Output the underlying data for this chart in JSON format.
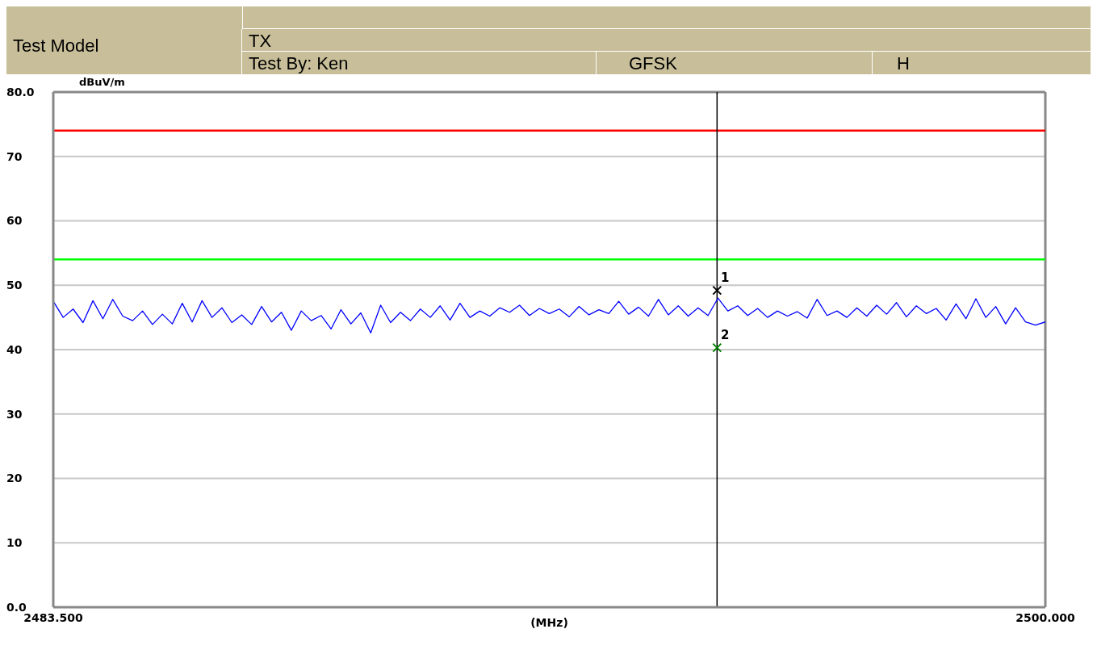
{
  "chart_data": {
    "type": "line",
    "annotations": [
      "Test Model",
      "TX",
      "Test By: Ken",
      "GFSK",
      "H"
    ],
    "xlabel": "(MHz)",
    "ylabel": "dBuV/m",
    "xlim": [
      2483.5,
      2500
    ],
    "xticks": [
      {
        "value": 2483.5,
        "label": "2483.500"
      },
      {
        "value": 2500,
        "label": "2500.000"
      }
    ],
    "ylim": [
      0,
      80
    ],
    "yticks": [
      {
        "value": 0,
        "label": "0.0"
      },
      10,
      20,
      30,
      40,
      50,
      60,
      70,
      {
        "value": 80,
        "label": "80.0"
      }
    ],
    "grid": "y",
    "legend": false,
    "line_style": "solid",
    "ref_lines": [
      {
        "axis": "y",
        "value": 74,
        "color": "#ff0000"
      },
      {
        "axis": "y",
        "value": 54,
        "color": "#00ff00"
      },
      {
        "axis": "x",
        "value": 2494.54,
        "color": "#000000"
      }
    ],
    "series": [
      {
        "color": "#0000ff",
        "marker": "none",
        "x": [
          2483.5,
          2483.665,
          2483.83,
          2483.995,
          2484.16,
          2484.325,
          2484.49,
          2484.655,
          2484.82,
          2484.985,
          2485.15,
          2485.315,
          2485.48,
          2485.645,
          2485.81,
          2485.975,
          2486.14,
          2486.305,
          2486.47,
          2486.635,
          2486.8,
          2486.965,
          2487.13,
          2487.295,
          2487.46,
          2487.625,
          2487.79,
          2487.955,
          2488.12,
          2488.285,
          2488.45,
          2488.615,
          2488.78,
          2488.945,
          2489.11,
          2489.275,
          2489.44,
          2489.605,
          2489.77,
          2489.935,
          2490.1,
          2490.265,
          2490.43,
          2490.595,
          2490.76,
          2490.925,
          2491.09,
          2491.255,
          2491.42,
          2491.585,
          2491.75,
          2491.915,
          2492.08,
          2492.245,
          2492.41,
          2492.575,
          2492.74,
          2492.905,
          2493.07,
          2493.235,
          2493.4,
          2493.565,
          2493.73,
          2493.895,
          2494.06,
          2494.225,
          2494.39,
          2494.555,
          2494.72,
          2494.885,
          2495.05,
          2495.215,
          2495.38,
          2495.545,
          2495.71,
          2495.875,
          2496.04,
          2496.205,
          2496.37,
          2496.535,
          2496.7,
          2496.865,
          2497.03,
          2497.195,
          2497.36,
          2497.525,
          2497.69,
          2497.855,
          2498.02,
          2498.185,
          2498.35,
          2498.515,
          2498.68,
          2498.845,
          2499.01,
          2499.175,
          2499.34,
          2499.505,
          2499.67,
          2499.835,
          2500
        ],
        "values": [
          47.5,
          45.0,
          46.3,
          44.2,
          47.6,
          44.8,
          47.8,
          45.2,
          44.5,
          46.0,
          43.9,
          45.5,
          44.0,
          47.2,
          44.3,
          47.6,
          45.0,
          46.5,
          44.2,
          45.4,
          43.9,
          46.7,
          44.3,
          45.8,
          43.0,
          46.0,
          44.5,
          45.3,
          43.2,
          46.2,
          44.0,
          45.7,
          42.6,
          46.9,
          44.2,
          45.8,
          44.5,
          46.3,
          45.0,
          46.8,
          44.6,
          47.2,
          45.0,
          46.0,
          45.2,
          46.5,
          45.8,
          46.9,
          45.3,
          46.4,
          45.6,
          46.3,
          45.1,
          46.7,
          45.4,
          46.2,
          45.6,
          47.5,
          45.5,
          46.6,
          45.2,
          47.8,
          45.4,
          46.8,
          45.2,
          46.5,
          45.3,
          48.0,
          46.0,
          46.8,
          45.3,
          46.4,
          45.0,
          46.0,
          45.2,
          45.9,
          44.9,
          47.8,
          45.3,
          46.0,
          45.0,
          46.5,
          45.2,
          46.9,
          45.5,
          47.3,
          45.1,
          46.8,
          45.6,
          46.4,
          44.6,
          47.1,
          44.8,
          47.9,
          45.0,
          46.7,
          44.0,
          46.5,
          44.3,
          43.8,
          44.3
        ]
      },
      {
        "type": "scatter",
        "color": "#000000",
        "marker": "cross",
        "x": [
          2494.54
        ],
        "values": [
          49.2
        ],
        "name": "1"
      },
      {
        "type": "scatter",
        "color": "#008000",
        "marker": "cross",
        "x": [
          2494.54
        ],
        "values": [
          40.3
        ],
        "name": "2"
      }
    ]
  }
}
